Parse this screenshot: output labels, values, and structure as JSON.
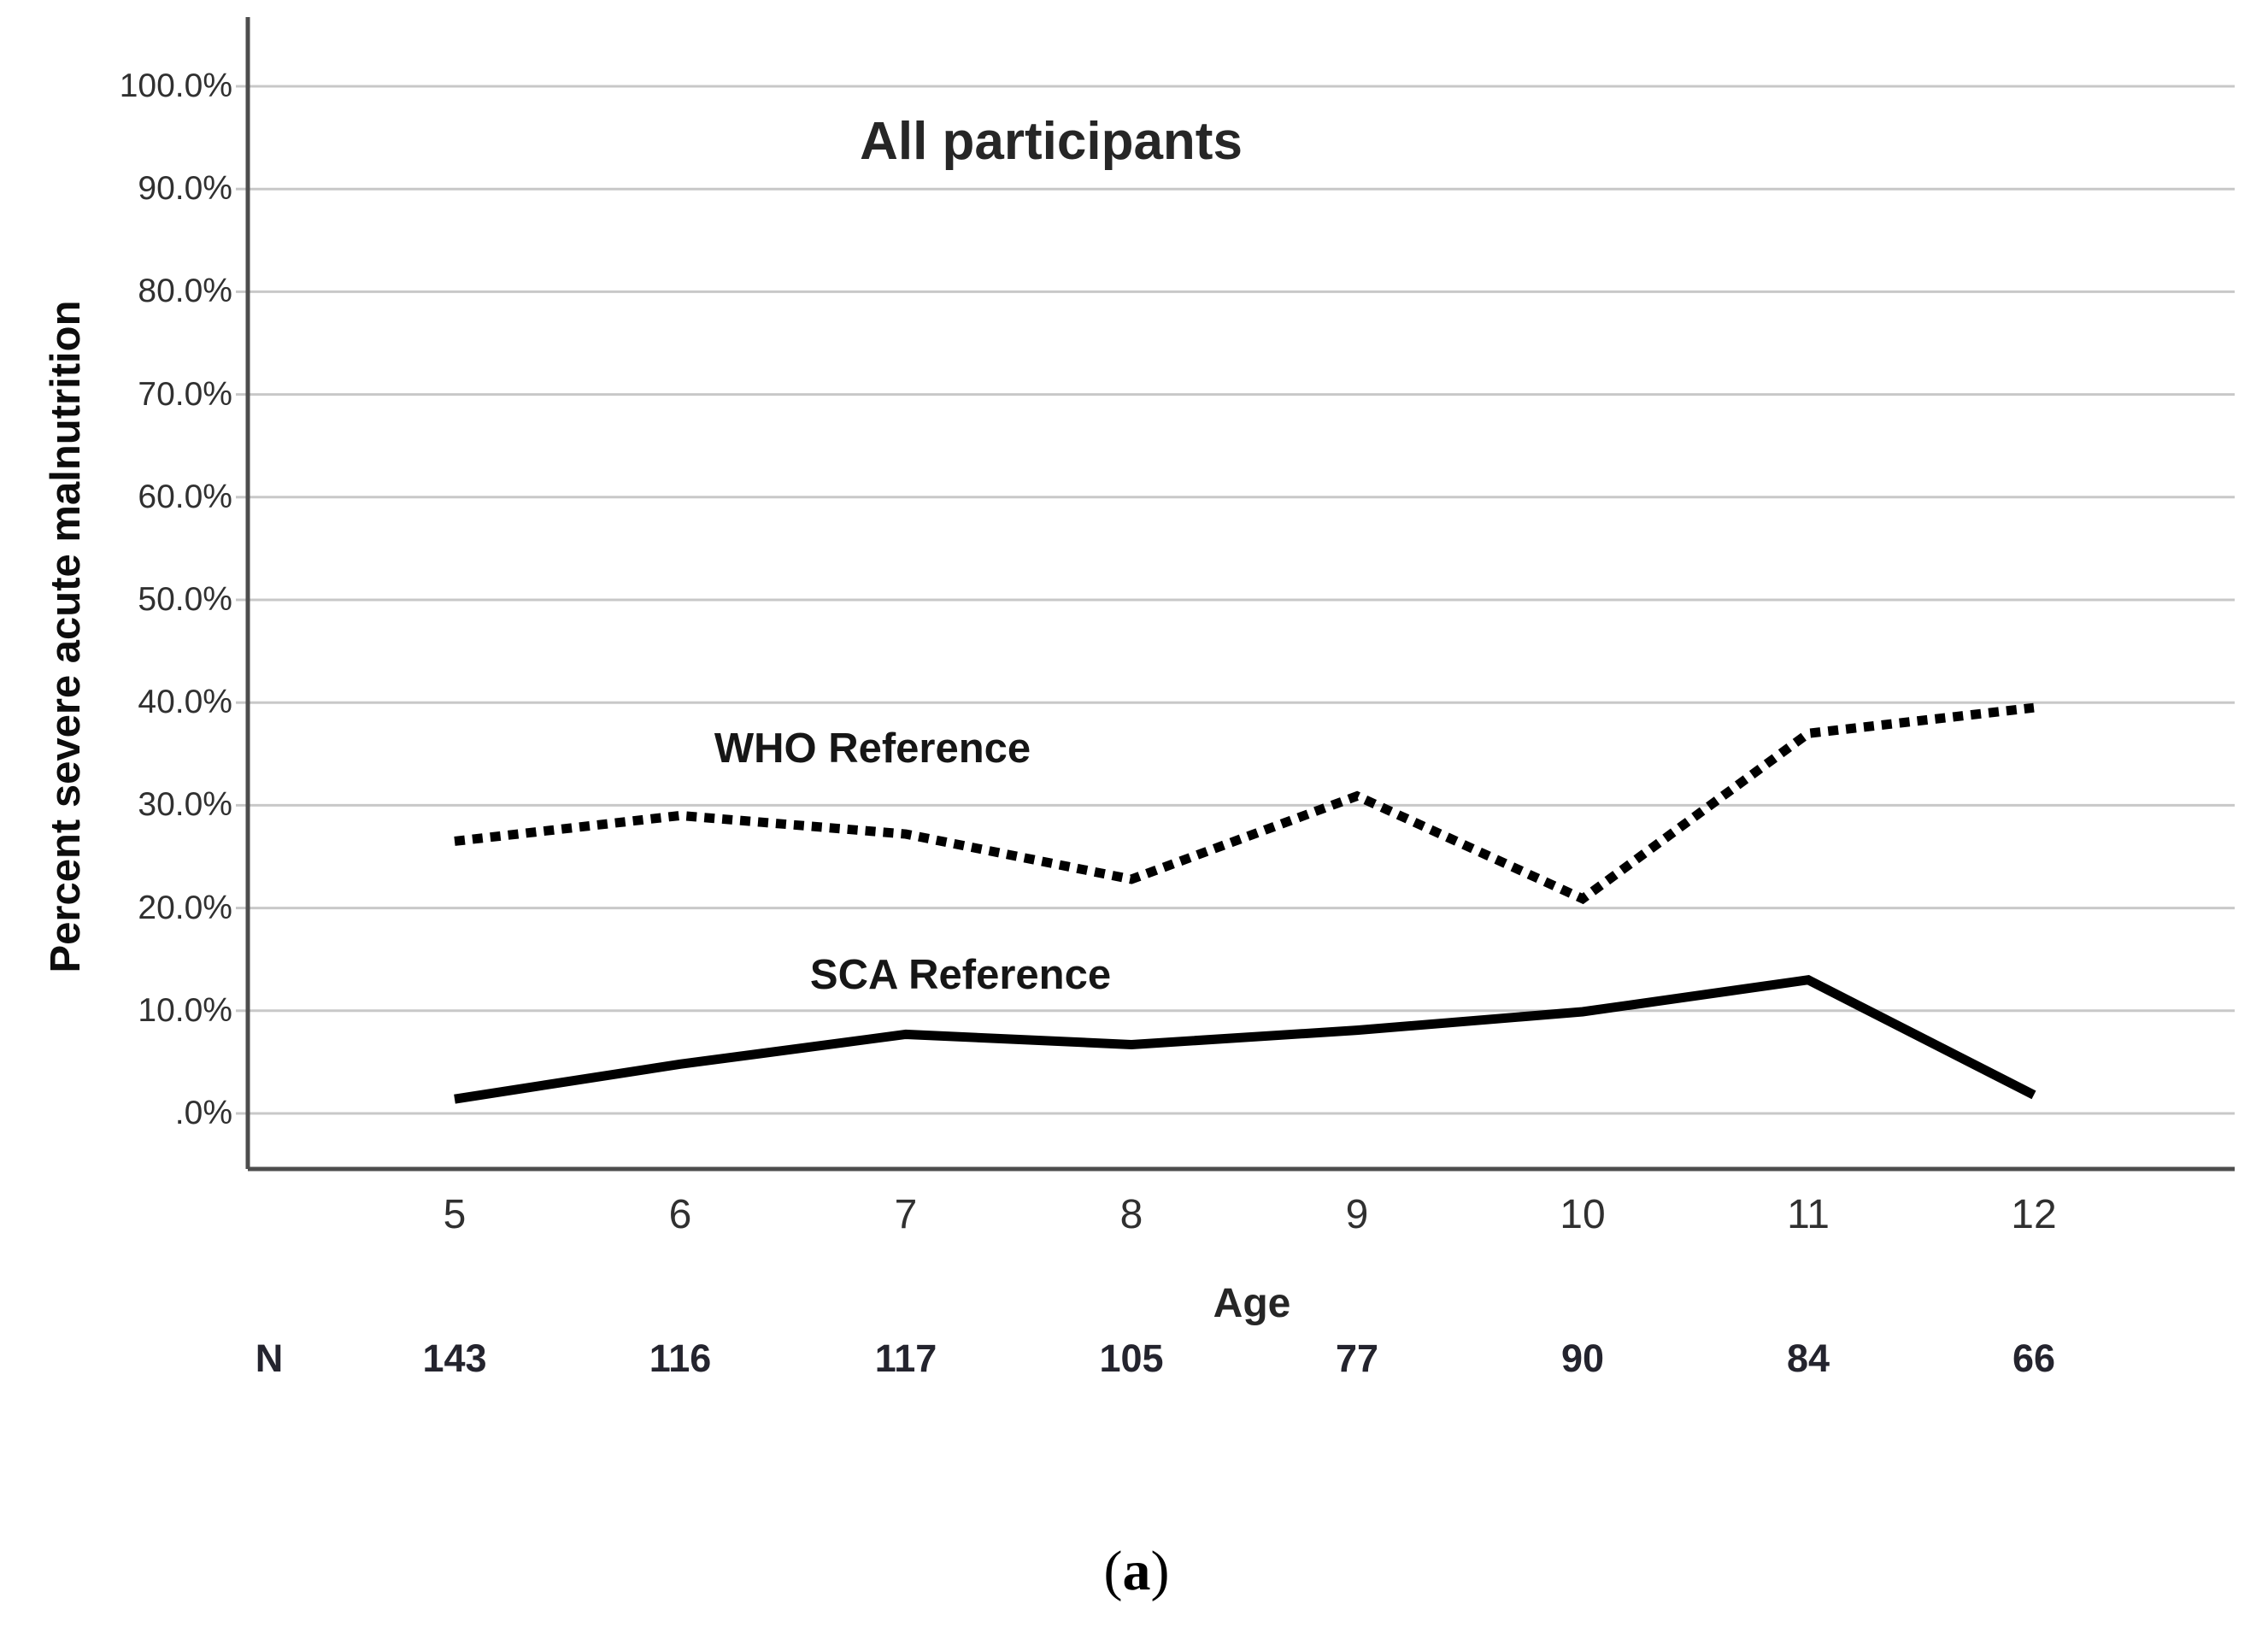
{
  "figure": {
    "title": "All participants",
    "y_axis_label": "Percent severe acute malnutrition",
    "x_axis_label": "Age",
    "n_row_label": "N",
    "caption_prefix": "(",
    "caption_letter": "a",
    "caption_suffix": ")"
  },
  "series_labels": {
    "who": "WHO Reference",
    "sca": "SCA Reference"
  },
  "chart_data": {
    "type": "line",
    "title": "All participants",
    "xlabel": "Age",
    "ylabel": "Percent severe acute malnutrition",
    "x": [
      5,
      6,
      7,
      8,
      9,
      10,
      11,
      12
    ],
    "x_tick_labels": [
      "5",
      "6",
      "7",
      "8",
      "9",
      "10",
      "11",
      "12"
    ],
    "series": [
      {
        "name": "WHO Reference",
        "style": "dotted",
        "values": [
          26.5,
          29.0,
          27.2,
          22.8,
          30.9,
          20.9,
          37.0,
          39.5
        ]
      },
      {
        "name": "SCA Reference",
        "style": "solid",
        "values": [
          1.4,
          4.8,
          7.7,
          6.7,
          8.1,
          9.9,
          13.0,
          1.8
        ]
      }
    ],
    "n_row": {
      "label": "N",
      "values": [
        143,
        116,
        117,
        105,
        77,
        90,
        84,
        66
      ]
    },
    "y_ticks": [
      {
        "label": "100.0%",
        "value": 100
      },
      {
        "label": "90.0%",
        "value": 90
      },
      {
        "label": "80.0%",
        "value": 80
      },
      {
        "label": "70.0%",
        "value": 70
      },
      {
        "label": "60.0%",
        "value": 60
      },
      {
        "label": "50.0%",
        "value": 50
      },
      {
        "label": "40.0%",
        "value": 40
      },
      {
        "label": "30.0%",
        "value": 30
      },
      {
        "label": "20.0%",
        "value": 20
      },
      {
        "label": "10.0%",
        "value": 10
      },
      {
        "label": ".0%",
        "value": 0
      }
    ],
    "ylim": [
      0,
      100
    ],
    "grid": "horizontal",
    "legend_position": "inline-labels",
    "colors": {
      "line": "#000000",
      "grid": "#c8c8c8",
      "axis": "#4d4d4d",
      "text": "#262626"
    }
  }
}
